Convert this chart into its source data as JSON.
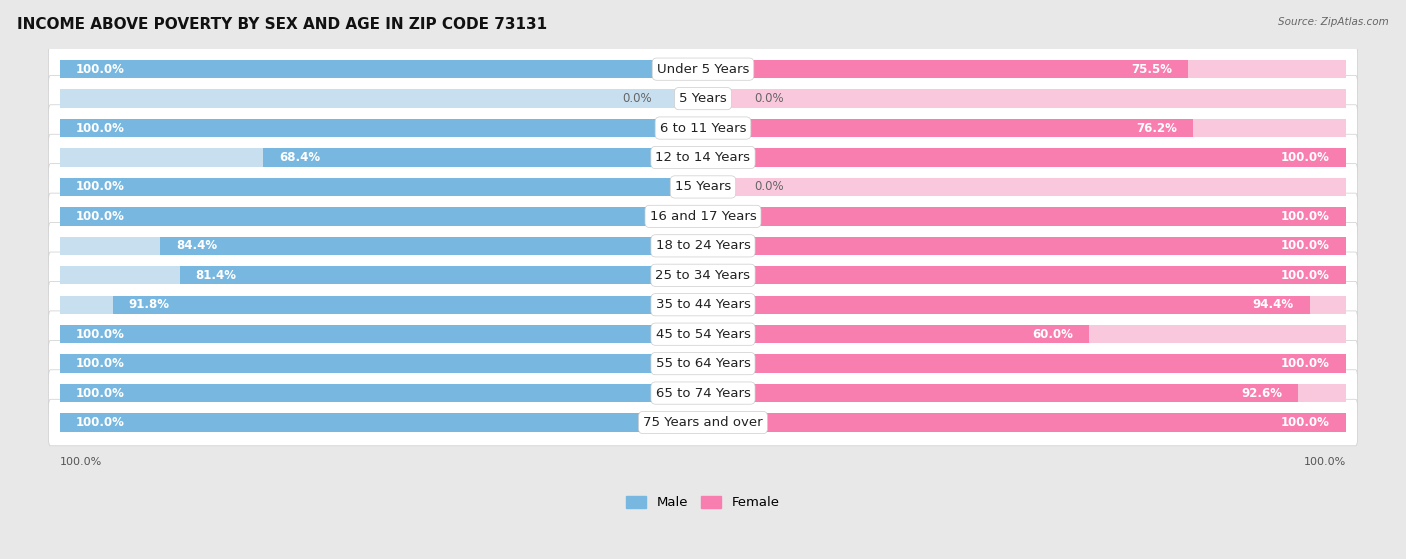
{
  "title": "INCOME ABOVE POVERTY BY SEX AND AGE IN ZIP CODE 73131",
  "source": "Source: ZipAtlas.com",
  "categories": [
    "Under 5 Years",
    "5 Years",
    "6 to 11 Years",
    "12 to 14 Years",
    "15 Years",
    "16 and 17 Years",
    "18 to 24 Years",
    "25 to 34 Years",
    "35 to 44 Years",
    "45 to 54 Years",
    "55 to 64 Years",
    "65 to 74 Years",
    "75 Years and over"
  ],
  "male": [
    100.0,
    0.0,
    100.0,
    68.4,
    100.0,
    100.0,
    84.4,
    81.4,
    91.8,
    100.0,
    100.0,
    100.0,
    100.0
  ],
  "female": [
    75.5,
    0.0,
    76.2,
    100.0,
    0.0,
    100.0,
    100.0,
    100.0,
    94.4,
    60.0,
    100.0,
    92.6,
    100.0
  ],
  "male_color": "#78b8e0",
  "female_color": "#f97eb0",
  "male_color_light": "#c8dff0",
  "female_color_light": "#fac8dc",
  "bg_color": "#e8e8e8",
  "row_bg_color": "#f8f8f8",
  "title_fontsize": 11,
  "label_fontsize": 9.5,
  "value_fontsize": 8.5,
  "max_val": 100.0
}
